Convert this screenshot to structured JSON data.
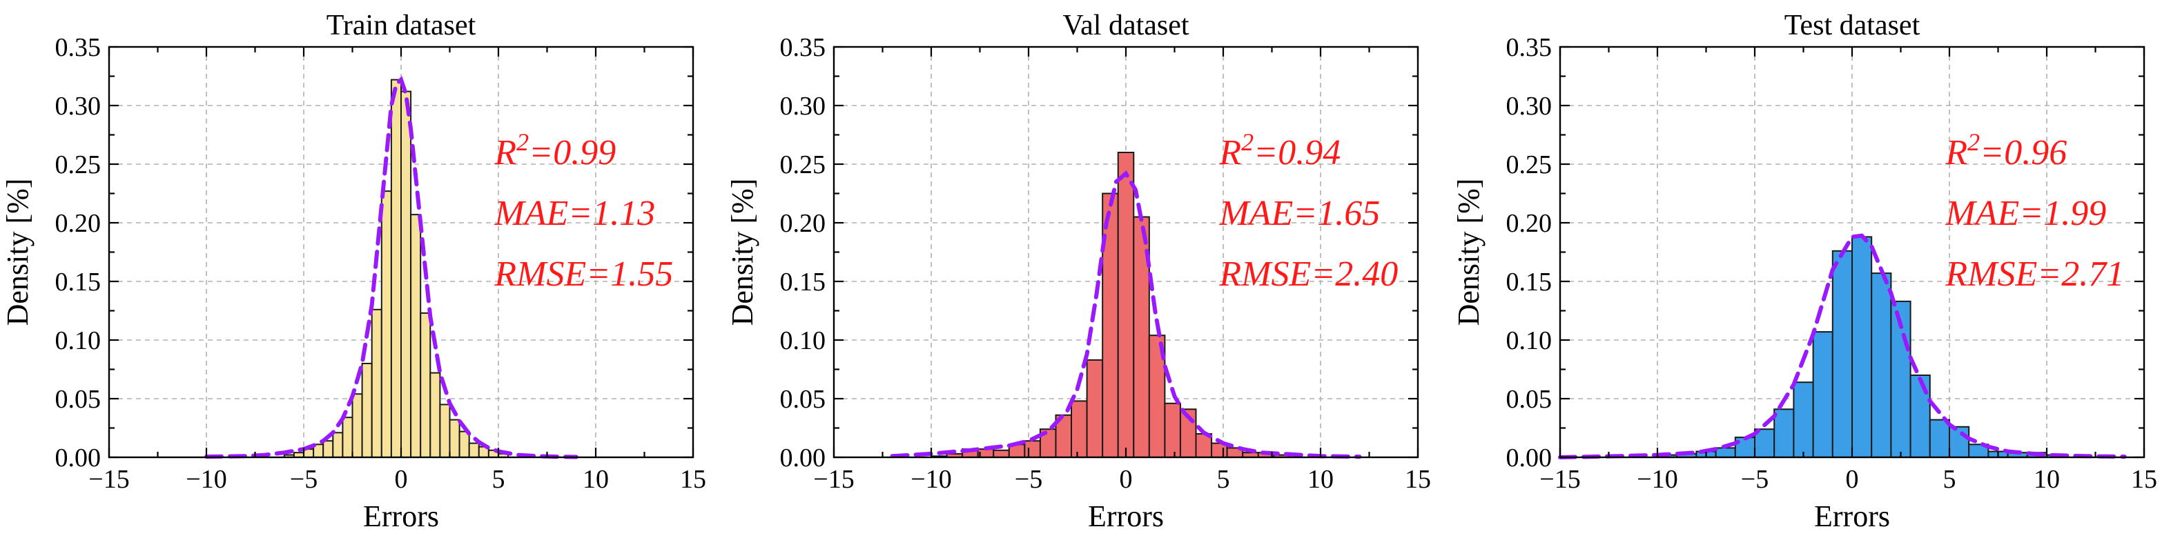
{
  "colors": {
    "kde_line": "#9a1aff",
    "metric_text": "#ff1a1a",
    "train_bar": "#f7e29c",
    "val_bar": "#ee6b6b",
    "test_bar": "#3b9ee6"
  },
  "chart_data": [
    {
      "type": "bar",
      "title": "Train dataset",
      "xlabel": "Errors",
      "ylabel": "Density [%]",
      "xlim": [
        -15,
        15
      ],
      "ylim": [
        0,
        0.35
      ],
      "xticks": [
        "−15",
        "−10",
        "−5",
        "0",
        "5",
        "10",
        "15"
      ],
      "yticks": [
        "0.00",
        "0.05",
        "0.10",
        "0.15",
        "0.20",
        "0.25",
        "0.30",
        "0.35"
      ],
      "bar_color": "#f7e29c",
      "bins": [
        {
          "x0": -6.0,
          "x1": -5.5,
          "value": 0.002
        },
        {
          "x0": -5.5,
          "x1": -5.0,
          "value": 0.004
        },
        {
          "x0": -5.0,
          "x1": -4.5,
          "value": 0.007
        },
        {
          "x0": -4.5,
          "x1": -4.0,
          "value": 0.011
        },
        {
          "x0": -4.0,
          "x1": -3.5,
          "value": 0.014
        },
        {
          "x0": -3.5,
          "x1": -3.0,
          "value": 0.021
        },
        {
          "x0": -3.0,
          "x1": -2.5,
          "value": 0.034
        },
        {
          "x0": -2.5,
          "x1": -2.0,
          "value": 0.054
        },
        {
          "x0": -2.0,
          "x1": -1.5,
          "value": 0.08
        },
        {
          "x0": -1.5,
          "x1": -1.0,
          "value": 0.126
        },
        {
          "x0": -1.0,
          "x1": -0.5,
          "value": 0.227
        },
        {
          "x0": -0.5,
          "x1": 0.0,
          "value": 0.322
        },
        {
          "x0": 0.0,
          "x1": 0.5,
          "value": 0.312
        },
        {
          "x0": 0.5,
          "x1": 1.0,
          "value": 0.207
        },
        {
          "x0": 1.0,
          "x1": 1.5,
          "value": 0.123
        },
        {
          "x0": 1.5,
          "x1": 2.0,
          "value": 0.072
        },
        {
          "x0": 2.0,
          "x1": 2.5,
          "value": 0.045
        },
        {
          "x0": 2.5,
          "x1": 3.0,
          "value": 0.032
        },
        {
          "x0": 3.0,
          "x1": 3.5,
          "value": 0.022
        },
        {
          "x0": 3.5,
          "x1": 4.0,
          "value": 0.012
        },
        {
          "x0": 4.0,
          "x1": 4.5,
          "value": 0.009
        },
        {
          "x0": 4.5,
          "x1": 5.0,
          "value": 0.006
        },
        {
          "x0": 5.0,
          "x1": 5.5,
          "value": 0.003
        }
      ],
      "kde": {
        "x": [
          -10,
          -8,
          -7,
          -6,
          -5,
          -4.5,
          -4,
          -3.5,
          -3,
          -2.5,
          -2,
          -1.5,
          -1,
          -0.5,
          -0.25,
          0,
          0.25,
          0.5,
          1,
          1.5,
          2,
          2.5,
          3,
          3.5,
          4,
          4.5,
          5,
          6,
          7,
          8,
          9
        ],
        "y": [
          0.0005,
          0.001,
          0.002,
          0.004,
          0.007,
          0.01,
          0.014,
          0.021,
          0.033,
          0.052,
          0.08,
          0.13,
          0.215,
          0.3,
          0.318,
          0.322,
          0.31,
          0.28,
          0.2,
          0.12,
          0.072,
          0.046,
          0.031,
          0.02,
          0.013,
          0.008,
          0.005,
          0.002,
          0.001,
          0.0005,
          0.0003
        ]
      },
      "metrics": [
        "R2=0.99",
        "MAE=1.13",
        "RMSE=1.55"
      ]
    },
    {
      "type": "bar",
      "title": "Val dataset",
      "xlabel": "Errors",
      "ylabel": "Density [%]",
      "xlim": [
        -15,
        15
      ],
      "ylim": [
        0,
        0.35
      ],
      "xticks": [
        "−15",
        "−10",
        "−5",
        "0",
        "5",
        "10",
        "15"
      ],
      "yticks": [
        "0.00",
        "0.05",
        "0.10",
        "0.15",
        "0.20",
        "0.25",
        "0.30",
        "0.35"
      ],
      "bar_color": "#ee6b6b",
      "bins": [
        {
          "x0": -10.0,
          "x1": -9.2,
          "value": 0.001
        },
        {
          "x0": -9.2,
          "x1": -8.4,
          "value": 0.003
        },
        {
          "x0": -8.4,
          "x1": -7.6,
          "value": 0.007
        },
        {
          "x0": -7.6,
          "x1": -6.8,
          "value": 0.007
        },
        {
          "x0": -6.8,
          "x1": -6.0,
          "value": 0.006
        },
        {
          "x0": -6.0,
          "x1": -5.2,
          "value": 0.011
        },
        {
          "x0": -5.2,
          "x1": -4.4,
          "value": 0.014
        },
        {
          "x0": -4.4,
          "x1": -3.6,
          "value": 0.024
        },
        {
          "x0": -3.6,
          "x1": -2.8,
          "value": 0.036
        },
        {
          "x0": -2.8,
          "x1": -2.0,
          "value": 0.048
        },
        {
          "x0": -2.0,
          "x1": -1.2,
          "value": 0.083
        },
        {
          "x0": -1.2,
          "x1": -0.4,
          "value": 0.225
        },
        {
          "x0": -0.4,
          "x1": 0.4,
          "value": 0.26
        },
        {
          "x0": 0.4,
          "x1": 1.2,
          "value": 0.205
        },
        {
          "x0": 1.2,
          "x1": 2.0,
          "value": 0.104
        },
        {
          "x0": 2.0,
          "x1": 2.8,
          "value": 0.046
        },
        {
          "x0": 2.8,
          "x1": 3.6,
          "value": 0.041
        },
        {
          "x0": 3.6,
          "x1": 4.4,
          "value": 0.02
        },
        {
          "x0": 4.4,
          "x1": 5.2,
          "value": 0.012
        },
        {
          "x0": 5.2,
          "x1": 6.0,
          "value": 0.008
        },
        {
          "x0": 6.0,
          "x1": 6.8,
          "value": 0.004
        },
        {
          "x0": 6.8,
          "x1": 7.6,
          "value": 0.004
        },
        {
          "x0": 7.6,
          "x1": 8.4,
          "value": 0.002
        }
      ],
      "kde": {
        "x": [
          -12,
          -10,
          -8,
          -7,
          -6,
          -5,
          -4,
          -3,
          -2.5,
          -2,
          -1.5,
          -1,
          -0.5,
          0,
          0.5,
          1,
          1.5,
          2,
          2.5,
          3,
          4,
          5,
          6,
          7,
          8,
          10,
          12
        ],
        "y": [
          0.001,
          0.003,
          0.006,
          0.008,
          0.01,
          0.014,
          0.022,
          0.04,
          0.058,
          0.088,
          0.14,
          0.2,
          0.235,
          0.242,
          0.228,
          0.185,
          0.125,
          0.078,
          0.052,
          0.038,
          0.021,
          0.012,
          0.007,
          0.004,
          0.003,
          0.001,
          0.0005
        ]
      },
      "metrics": [
        "R2=0.94",
        "MAE=1.65",
        "RMSE=2.40"
      ]
    },
    {
      "type": "bar",
      "title": "Test dataset",
      "xlabel": "Errors",
      "ylabel": "Density [%]",
      "xlim": [
        -15,
        15
      ],
      "ylim": [
        0,
        0.35
      ],
      "xticks": [
        "−15",
        "−10",
        "−5",
        "0",
        "5",
        "10",
        "15"
      ],
      "yticks": [
        "0.00",
        "0.05",
        "0.10",
        "0.15",
        "0.20",
        "0.25",
        "0.30",
        "0.35"
      ],
      "bar_color": "#3b9ee6",
      "bins": [
        {
          "x0": -10.0,
          "x1": -9.0,
          "value": 0.002
        },
        {
          "x0": -9.0,
          "x1": -8.0,
          "value": 0.003
        },
        {
          "x0": -8.0,
          "x1": -7.0,
          "value": 0.005
        },
        {
          "x0": -7.0,
          "x1": -6.0,
          "value": 0.008
        },
        {
          "x0": -6.0,
          "x1": -5.0,
          "value": 0.017
        },
        {
          "x0": -5.0,
          "x1": -4.0,
          "value": 0.024
        },
        {
          "x0": -4.0,
          "x1": -3.0,
          "value": 0.041
        },
        {
          "x0": -3.0,
          "x1": -2.0,
          "value": 0.064
        },
        {
          "x0": -2.0,
          "x1": -1.0,
          "value": 0.107
        },
        {
          "x0": -1.0,
          "x1": 0.0,
          "value": 0.176
        },
        {
          "x0": 0.0,
          "x1": 1.0,
          "value": 0.188
        },
        {
          "x0": 1.0,
          "x1": 2.0,
          "value": 0.157
        },
        {
          "x0": 2.0,
          "x1": 3.0,
          "value": 0.133
        },
        {
          "x0": 3.0,
          "x1": 4.0,
          "value": 0.07
        },
        {
          "x0": 4.0,
          "x1": 5.0,
          "value": 0.032
        },
        {
          "x0": 5.0,
          "x1": 6.0,
          "value": 0.026
        },
        {
          "x0": 6.0,
          "x1": 7.0,
          "value": 0.011
        },
        {
          "x0": 7.0,
          "x1": 8.0,
          "value": 0.005
        },
        {
          "x0": 8.0,
          "x1": 9.0,
          "value": 0.004
        },
        {
          "x0": 9.0,
          "x1": 10.0,
          "value": 0.004
        },
        {
          "x0": 10.0,
          "x1": 11.0,
          "value": 0.002
        }
      ],
      "kde": {
        "x": [
          -15,
          -12,
          -10,
          -8,
          -7,
          -6,
          -5,
          -4,
          -3,
          -2,
          -1,
          0,
          0.5,
          1,
          2,
          3,
          4,
          5,
          6,
          7,
          8,
          10,
          12,
          14
        ],
        "y": [
          0.0,
          0.001,
          0.002,
          0.004,
          0.007,
          0.012,
          0.02,
          0.035,
          0.062,
          0.105,
          0.16,
          0.188,
          0.189,
          0.18,
          0.14,
          0.085,
          0.048,
          0.028,
          0.016,
          0.009,
          0.005,
          0.002,
          0.001,
          0.0005
        ]
      },
      "metrics": [
        "R2=0.96",
        "MAE=1.99",
        "RMSE=2.71"
      ]
    }
  ]
}
